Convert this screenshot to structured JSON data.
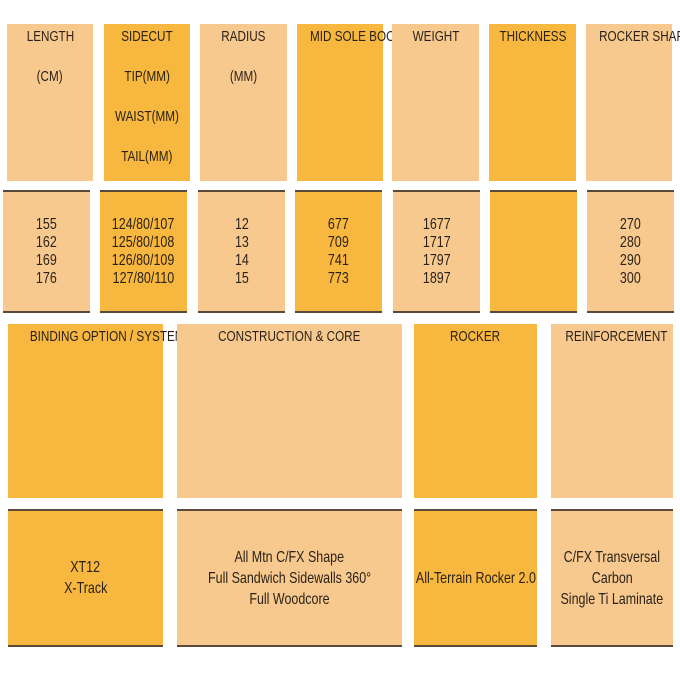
{
  "colors": {
    "light": "#F8C98E",
    "dark": "#F8B73E"
  },
  "top_table": {
    "columns": [
      {
        "header": "LENGTH",
        "units": [
          "(CM)"
        ],
        "values": [
          "155",
          "162",
          "169",
          "176"
        ]
      },
      {
        "header": "SIDECUT",
        "units": [
          "TIP(MM)",
          "WAIST(MM)",
          "TAIL(MM)"
        ],
        "values": [
          "124/80/107",
          "125/80/108",
          "126/80/109",
          "127/80/110"
        ]
      },
      {
        "header": "RADIUS",
        "units": [
          "(MM)"
        ],
        "values": [
          "12",
          "13",
          "14",
          "15"
        ]
      },
      {
        "header": "MID SOLE BOOT",
        "units": [],
        "values": [
          "677",
          "709",
          "741",
          "773"
        ]
      },
      {
        "header": "WEIGHT",
        "units": [],
        "values": [
          "1677",
          "1717",
          "1797",
          "1897"
        ]
      },
      {
        "header": "THICKNESS",
        "units": [],
        "values": []
      },
      {
        "header": "ROCKER SHAPE",
        "units": [],
        "values": [
          "270",
          "280",
          "290",
          "300"
        ]
      }
    ]
  },
  "bottom_table": {
    "columns": [
      {
        "header": "BINDING OPTION / SYSTEM",
        "lines": [
          "XT12",
          "X-Track"
        ]
      },
      {
        "header": "CONSTRUCTION & CORE",
        "lines": [
          "All Mtn C/FX Shape",
          "Full Sandwich Sidewalls 360°",
          "Full Woodcore"
        ]
      },
      {
        "header": "ROCKER",
        "lines": [
          "All-Terrain Rocker 2.0"
        ]
      },
      {
        "header": "REINFORCEMENT",
        "lines": [
          "C/FX Transversal",
          "Carbon",
          "Single Ti Laminate"
        ]
      }
    ]
  }
}
